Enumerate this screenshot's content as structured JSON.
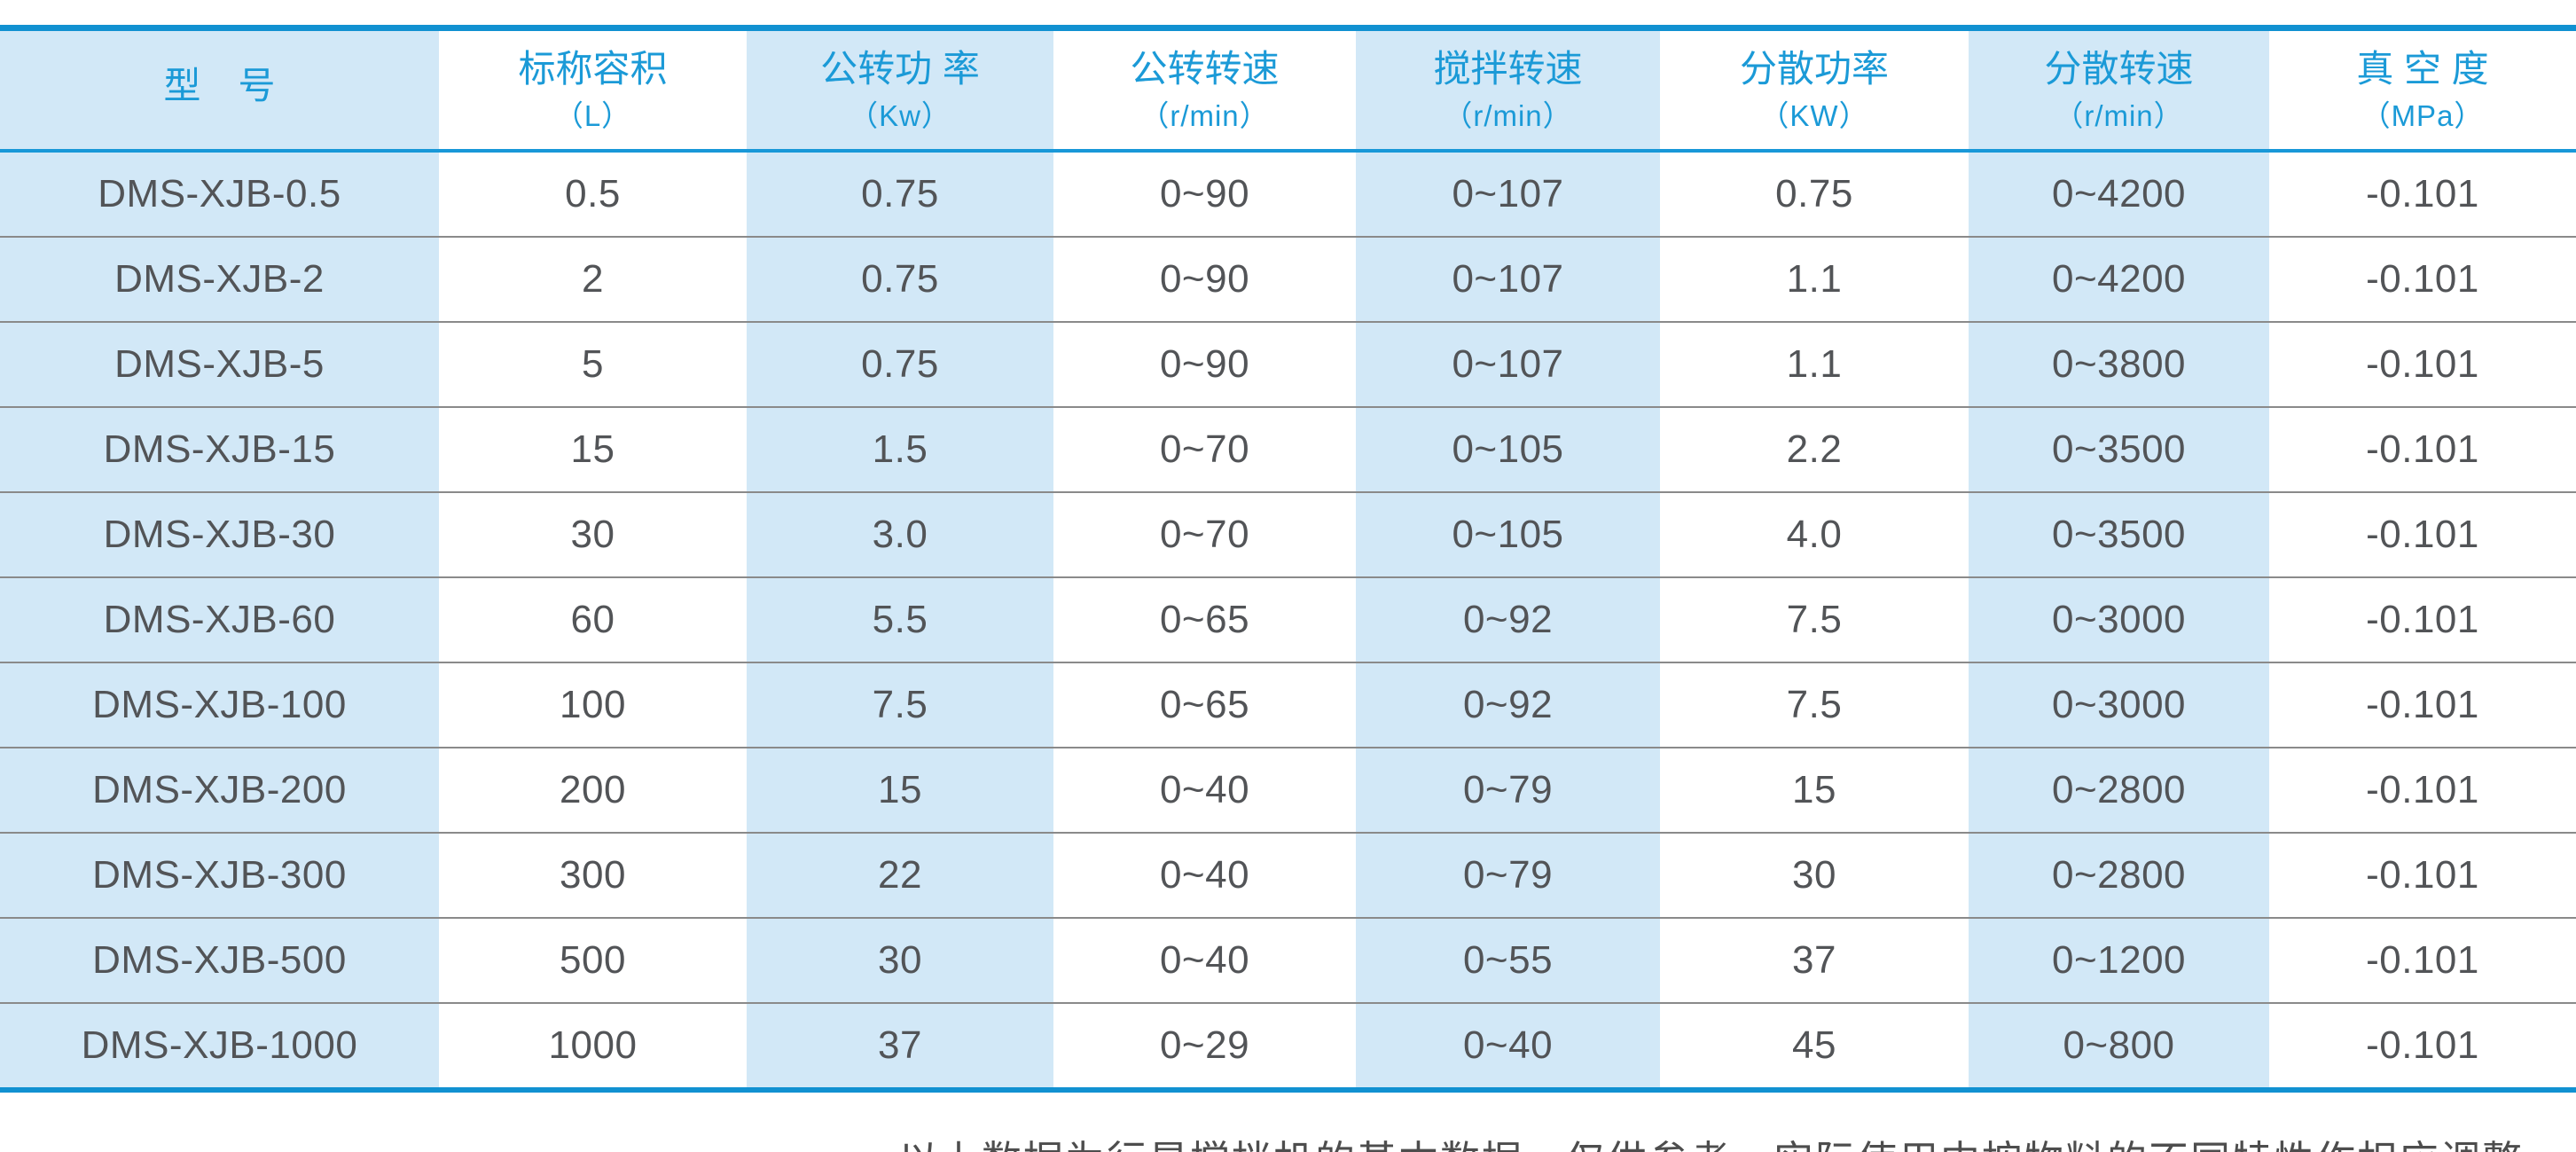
{
  "table": {
    "columns": [
      {
        "title": "型　号",
        "unit": ""
      },
      {
        "title": "标称容积",
        "unit": "（L）"
      },
      {
        "title": "公转功 率",
        "unit": "（Kw）"
      },
      {
        "title": "公转转速",
        "unit": "（r/min）"
      },
      {
        "title": "搅拌转速",
        "unit": "（r/min）"
      },
      {
        "title": "分散功率",
        "unit": "（KW）"
      },
      {
        "title": "分散转速",
        "unit": "（r/min）"
      },
      {
        "title": "真 空 度",
        "unit": "（MPa）"
      }
    ],
    "rows": [
      [
        "DMS-XJB-0.5",
        "0.5",
        "0.75",
        "0~90",
        "0~107",
        "0.75",
        "0~4200",
        "-0.101"
      ],
      [
        "DMS-XJB-2",
        "2",
        "0.75",
        "0~90",
        "0~107",
        "1.1",
        "0~4200",
        "-0.101"
      ],
      [
        "DMS-XJB-5",
        "5",
        "0.75",
        "0~90",
        "0~107",
        "1.1",
        "0~3800",
        "-0.101"
      ],
      [
        "DMS-XJB-15",
        "15",
        "1.5",
        "0~70",
        "0~105",
        "2.2",
        "0~3500",
        "-0.101"
      ],
      [
        "DMS-XJB-30",
        "30",
        "3.0",
        "0~70",
        "0~105",
        "4.0",
        "0~3500",
        "-0.101"
      ],
      [
        "DMS-XJB-60",
        "60",
        "5.5",
        "0~65",
        "0~92",
        "7.5",
        "0~3000",
        "-0.101"
      ],
      [
        "DMS-XJB-100",
        "100",
        "7.5",
        "0~65",
        "0~92",
        "7.5",
        "0~3000",
        "-0.101"
      ],
      [
        "DMS-XJB-200",
        "200",
        "15",
        "0~40",
        "0~79",
        "15",
        "0~2800",
        "-0.101"
      ],
      [
        "DMS-XJB-300",
        "300",
        "22",
        "0~40",
        "0~79",
        "30",
        "0~2800",
        "-0.101"
      ],
      [
        "DMS-XJB-500",
        "500",
        "30",
        "0~40",
        "0~55",
        "37",
        "0~1200",
        "-0.101"
      ],
      [
        "DMS-XJB-1000",
        "1000",
        "37",
        "0~29",
        "0~40",
        "45",
        "0~800",
        "-0.101"
      ]
    ]
  },
  "footer": {
    "note": "以上数据为行星搅拌机的基本数据，仅供参考，实际使用中按物料的不同特性作相应调整。"
  },
  "colors": {
    "border_blue": "#1191d1",
    "header_separator_blue": "#1898d8",
    "header_text_blue": "#1b9ad7",
    "column_stripe_blue": "#d2e8f7",
    "data_text_gray": "#525457",
    "row_separator_gray": "#8a8a8a",
    "footnote_gray": "#4d4d4d"
  }
}
